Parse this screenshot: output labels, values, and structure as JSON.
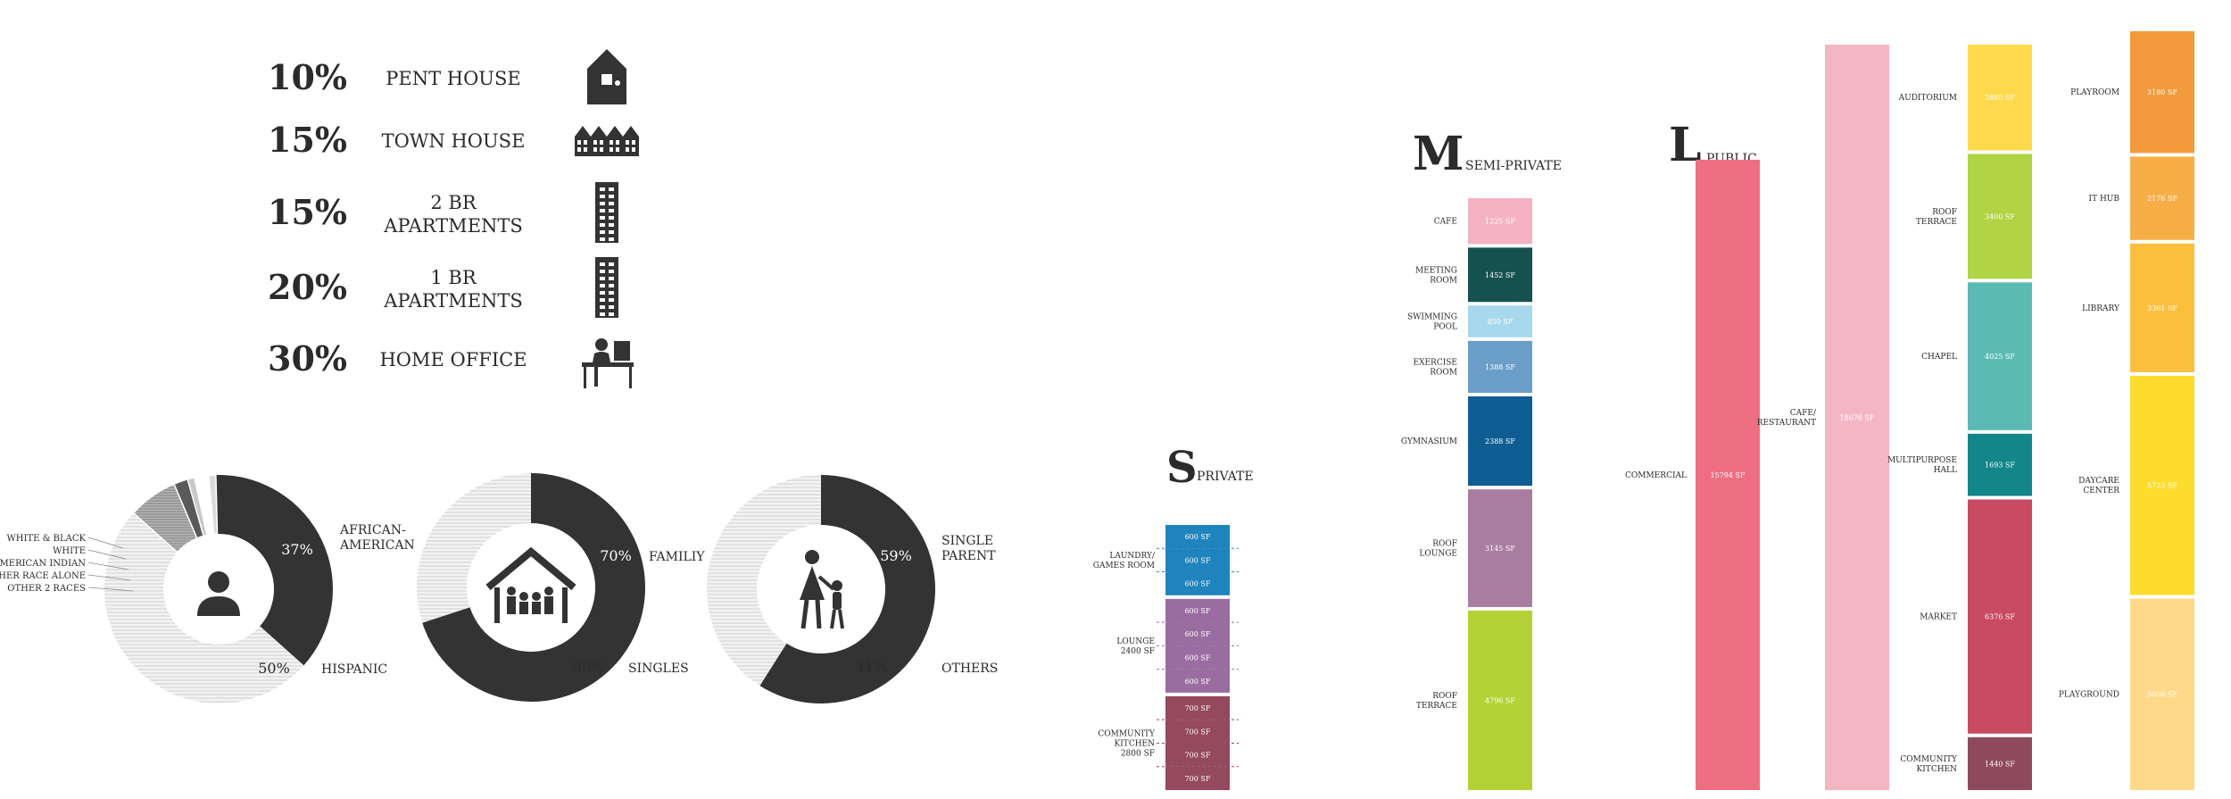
{
  "housing_mix": [
    {
      "percent": "10%",
      "label": [
        "PENT HOUSE"
      ],
      "icon": "penthouse-icon"
    },
    {
      "percent": "15%",
      "label": [
        "TOWN HOUSE"
      ],
      "icon": "townhouse-icon"
    },
    {
      "percent": "15%",
      "label": [
        "2 BR",
        "APARTMENTS"
      ],
      "icon": "apartment-tower-icon"
    },
    {
      "percent": "20%",
      "label": [
        "1 BR",
        "APARTMENTS"
      ],
      "icon": "apartment-tower-icon"
    },
    {
      "percent": "30%",
      "label": [
        "HOME OFFICE"
      ],
      "icon": "home-office-icon"
    }
  ],
  "colors": {
    "dark": "#333333",
    "hatch": "#e6e6e6",
    "gray_mid": "#9a9a9a",
    "gray_light": "#c4c4c4",
    "dashed_line": "#ffffff"
  },
  "chart_data": [
    {
      "type": "pie",
      "variant": "donut",
      "icon": "person-icon",
      "slices": [
        {
          "label": "AFRICAN-AMERICAN",
          "value": 37,
          "value_label": "37%"
        },
        {
          "label": "HISPANIC",
          "value": 50,
          "value_label": "50%"
        },
        {
          "label": "OTHER 2 RACES",
          "value": 7,
          "value_label": ""
        },
        {
          "label": "OTHER RACE ALONE",
          "value": 2,
          "value_label": ""
        },
        {
          "label": "AMERICAN INDIAN",
          "value": 1,
          "value_label": ""
        },
        {
          "label": "WHITE",
          "value": 2,
          "value_label": ""
        },
        {
          "label": "WHITE & BLACK",
          "value": 1,
          "value_label": ""
        }
      ]
    },
    {
      "type": "pie",
      "variant": "donut",
      "icon": "family-house-icon",
      "slices": [
        {
          "label": "FAMILIY",
          "value": 70,
          "value_label": "70%"
        },
        {
          "label": "SINGLES",
          "value": 30,
          "value_label": "30%"
        }
      ]
    },
    {
      "type": "pie",
      "variant": "donut",
      "icon": "parent-child-icon",
      "slices": [
        {
          "label": "SINGLE PARENT",
          "value": 59,
          "value_label": "59%"
        },
        {
          "label": "OTHERS",
          "value": 41,
          "value_label": "41%"
        }
      ]
    },
    {
      "type": "bar",
      "variant": "stacked-column",
      "letter": "S",
      "title": "PRIVATE",
      "groups": [
        {
          "label": [
            "LAUNDRY/",
            "GAMES ROOM"
          ],
          "color": "#1f83bd",
          "units": [
            "600 SF",
            "600 SF",
            "600 SF"
          ],
          "values": [
            600,
            600,
            600
          ]
        },
        {
          "label": [
            "LOUNGE",
            "2400 SF"
          ],
          "color": "#9a6da0",
          "units": [
            "600 SF",
            "600 SF",
            "600 SF",
            "600 SF"
          ],
          "values": [
            600,
            600,
            600,
            600
          ]
        },
        {
          "label": [
            "COMMUNITY",
            "KITCHEN",
            "2800 SF"
          ],
          "color": "#94495d",
          "units": [
            "700 SF",
            "700 SF",
            "700 SF",
            "700 SF"
          ],
          "values": [
            700,
            700,
            700,
            700
          ]
        }
      ]
    },
    {
      "type": "bar",
      "variant": "stacked-column",
      "letter": "M",
      "title": "SEMI-PRIVATE",
      "segments": [
        {
          "label": [
            "CAFE"
          ],
          "value": 1225,
          "value_label": "1225 SF",
          "color": "#f4b3c3"
        },
        {
          "label": [
            "MEETING",
            "ROOM"
          ],
          "value": 1452,
          "value_label": "1452 SF",
          "color": "#15524f"
        },
        {
          "label": [
            "SWIMMING",
            "POOL"
          ],
          "value": 850,
          "value_label": "850 SF",
          "color": "#a7d8ee"
        },
        {
          "label": [
            "EXERCISE",
            "ROOM"
          ],
          "value": 1388,
          "value_label": "1388 SF",
          "color": "#6a9ec8"
        },
        {
          "label": [
            "GYMNASIUM"
          ],
          "value": 2388,
          "value_label": "2388 SF",
          "color": "#0e5e93"
        },
        {
          "label": [
            "ROOF",
            "LOUNGE"
          ],
          "value": 3145,
          "value_label": "3145 SF",
          "color": "#a97da0"
        },
        {
          "label": [
            "ROOF",
            "TERRACE"
          ],
          "value": 4796,
          "value_label": "4796 SF",
          "color": "#b2d235"
        }
      ]
    },
    {
      "type": "bar",
      "variant": "column",
      "letter": "L",
      "title": "PUBLIC",
      "columns": [
        {
          "label": [
            "COMMERCIAL"
          ],
          "value": 15794,
          "value_label": "15794 SF",
          "color": "#ef6f82"
        },
        {
          "label": [
            "CAFE/",
            "RESTAURANT"
          ],
          "value": 18678,
          "value_label": "18678 SF",
          "color": "#f5b6c4"
        }
      ],
      "stacks": [
        {
          "segments": [
            {
              "label": [
                "AUDITORIUM"
              ],
              "value": 2880,
              "value_label": "2880 SF",
              "color": "#ffd94c"
            },
            {
              "label": [
                "ROOF",
                "TERRACE"
              ],
              "value": 3400,
              "value_label": "3400 SF",
              "color": "#b0d444"
            },
            {
              "label": [
                "CHAPEL"
              ],
              "value": 4025,
              "value_label": "4025 SF",
              "color": "#5bbab4"
            },
            {
              "label": [
                "MULTIPURPOSE",
                "HALL"
              ],
              "value": 1693,
              "value_label": "1693 SF",
              "color": "#13868a"
            },
            {
              "label": [
                "MARKET"
              ],
              "value": 6376,
              "value_label": "6376 SF",
              "color": "#c94a63"
            },
            {
              "label": [
                "COMMUNITY",
                "KITCHEN"
              ],
              "value": 1440,
              "value_label": "1440 SF",
              "color": "#8e4a5c"
            }
          ]
        },
        {
          "segments": [
            {
              "label": [
                "PLAYROOM"
              ],
              "value": 3180,
              "value_label": "3180 SF",
              "color": "#f39a3c"
            },
            {
              "label": [
                "IT HUB"
              ],
              "value": 2176,
              "value_label": "2176 SF",
              "color": "#f8ae47"
            },
            {
              "label": [
                "LIBRARY"
              ],
              "value": 3361,
              "value_label": "3361 SF",
              "color": "#fbbf3c"
            },
            {
              "label": [
                "DAYCARE",
                "CENTER"
              ],
              "value": 5723,
              "value_label": "5723 SF",
              "color": "#fedc2e"
            },
            {
              "label": [
                "PLAYGROUND"
              ],
              "value": 5000,
              "value_label": "5000 SF",
              "color": "#fed98a"
            }
          ]
        }
      ]
    }
  ]
}
